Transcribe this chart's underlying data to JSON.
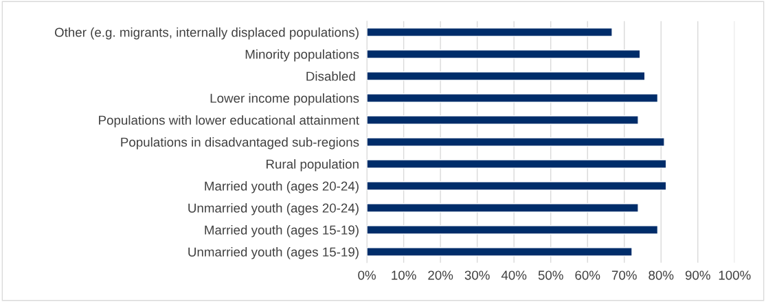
{
  "chart_data": {
    "type": "bar",
    "orientation": "horizontal",
    "categories": [
      "Other (e.g. migrants, internally displaced populations)",
      "Minority populations",
      "Disabled ",
      "Lower income populations",
      "Populations with lower educational attainment",
      "Populations in disadvantaged sub-regions",
      "Rural population",
      "Married youth (ages 20-24)",
      "Unmarried youth (ages 20-24)",
      "Married youth (ages 15-19)",
      "Unmarried youth (ages 15-19)"
    ],
    "values": [
      66.7,
      74.3,
      75.6,
      79.1,
      73.8,
      80.9,
      81.4,
      81.4,
      73.8,
      79.1,
      72.1
    ],
    "color": "#002d6a",
    "xlim": [
      0,
      100
    ],
    "xticks": [
      {
        "value": 0,
        "label": "0%"
      },
      {
        "value": 10,
        "label": "10%"
      },
      {
        "value": 20,
        "label": "20%"
      },
      {
        "value": 30,
        "label": "30%"
      },
      {
        "value": 40,
        "label": "40%"
      },
      {
        "value": 50,
        "label": "50%"
      },
      {
        "value": 60,
        "label": "60%"
      },
      {
        "value": 70,
        "label": "70%"
      },
      {
        "value": 80,
        "label": "80%"
      },
      {
        "value": 90,
        "label": "90%"
      },
      {
        "value": 100,
        "label": "100%"
      }
    ],
    "grid": "x"
  }
}
